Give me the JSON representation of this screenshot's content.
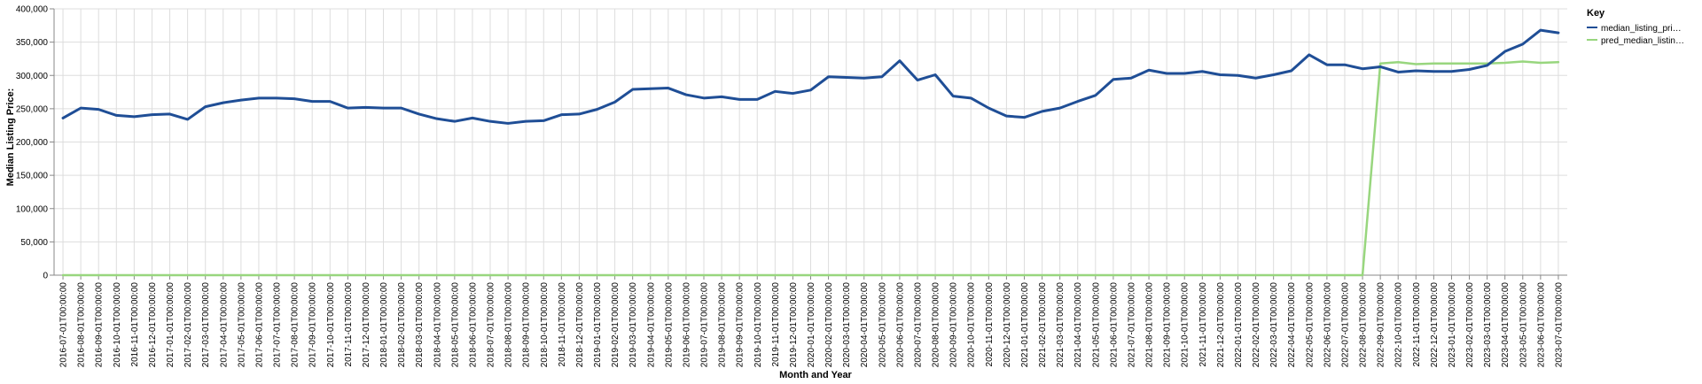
{
  "chart_data": {
    "type": "line",
    "xlabel": "Month and Year",
    "ylabel": "Median Listing Price:",
    "ylim": [
      0,
      400000
    ],
    "y_ticks": [
      "0",
      "50,000",
      "100,000",
      "150,000",
      "200,000",
      "250,000",
      "300,000",
      "350,000",
      "400,000"
    ],
    "grid": true,
    "legend": {
      "title": "Key",
      "placement": "top-right",
      "entries": [
        "median_listing_pri…",
        "pred_median_listin…"
      ]
    },
    "x": [
      "2016-07-01T00:00:00",
      "2016-08-01T00:00:00",
      "2016-09-01T00:00:00",
      "2016-10-01T00:00:00",
      "2016-11-01T00:00:00",
      "2016-12-01T00:00:00",
      "2017-01-01T00:00:00",
      "2017-02-01T00:00:00",
      "2017-03-01T00:00:00",
      "2017-04-01T00:00:00",
      "2017-05-01T00:00:00",
      "2017-06-01T00:00:00",
      "2017-07-01T00:00:00",
      "2017-08-01T00:00:00",
      "2017-09-01T00:00:00",
      "2017-10-01T00:00:00",
      "2017-11-01T00:00:00",
      "2017-12-01T00:00:00",
      "2018-01-01T00:00:00",
      "2018-02-01T00:00:00",
      "2018-03-01T00:00:00",
      "2018-04-01T00:00:00",
      "2018-05-01T00:00:00",
      "2018-06-01T00:00:00",
      "2018-07-01T00:00:00",
      "2018-08-01T00:00:00",
      "2018-09-01T00:00:00",
      "2018-10-01T00:00:00",
      "2018-11-01T00:00:00",
      "2018-12-01T00:00:00",
      "2019-01-01T00:00:00",
      "2019-02-01T00:00:00",
      "2019-03-01T00:00:00",
      "2019-04-01T00:00:00",
      "2019-05-01T00:00:00",
      "2019-06-01T00:00:00",
      "2019-07-01T00:00:00",
      "2019-08-01T00:00:00",
      "2019-09-01T00:00:00",
      "2019-10-01T00:00:00",
      "2019-11-01T00:00:00",
      "2019-12-01T00:00:00",
      "2020-01-01T00:00:00",
      "2020-02-01T00:00:00",
      "2020-03-01T00:00:00",
      "2020-04-01T00:00:00",
      "2020-05-01T00:00:00",
      "2020-06-01T00:00:00",
      "2020-07-01T00:00:00",
      "2020-08-01T00:00:00",
      "2020-09-01T00:00:00",
      "2020-10-01T00:00:00",
      "2020-11-01T00:00:00",
      "2020-12-01T00:00:00",
      "2021-01-01T00:00:00",
      "2021-02-01T00:00:00",
      "2021-03-01T00:00:00",
      "2021-04-01T00:00:00",
      "2021-05-01T00:00:00",
      "2021-06-01T00:00:00",
      "2021-07-01T00:00:00",
      "2021-08-01T00:00:00",
      "2021-09-01T00:00:00",
      "2021-10-01T00:00:00",
      "2021-11-01T00:00:00",
      "2021-12-01T00:00:00",
      "2022-01-01T00:00:00",
      "2022-02-01T00:00:00",
      "2022-03-01T00:00:00",
      "2022-04-01T00:00:00",
      "2022-05-01T00:00:00",
      "2022-06-01T00:00:00",
      "2022-07-01T00:00:00",
      "2022-08-01T00:00:00",
      "2022-09-01T00:00:00",
      "2022-10-01T00:00:00",
      "2022-11-01T00:00:00",
      "2022-12-01T00:00:00",
      "2023-01-01T00:00:00",
      "2023-02-01T00:00:00",
      "2023-03-01T00:00:00",
      "2023-04-01T00:00:00",
      "2023-05-01T00:00:00",
      "2023-06-01T00:00:00",
      "2023-07-01T00:00:00"
    ],
    "series": [
      {
        "name": "median_listing_pri…",
        "color": "#1f4e96",
        "values": [
          236000,
          251000,
          249000,
          240000,
          238000,
          241000,
          242000,
          234000,
          253000,
          259000,
          263000,
          266000,
          266000,
          265000,
          261000,
          261000,
          251000,
          252000,
          251000,
          251000,
          242000,
          235000,
          231000,
          236000,
          231000,
          228000,
          231000,
          232000,
          241000,
          242000,
          249000,
          260000,
          279000,
          280000,
          281000,
          271000,
          266000,
          268000,
          264000,
          264000,
          276000,
          273000,
          278000,
          298000,
          297000,
          296000,
          298000,
          322000,
          293000,
          301000,
          269000,
          266000,
          251000,
          239000,
          237000,
          246000,
          251000,
          261000,
          270000,
          294000,
          296000,
          308000,
          303000,
          303000,
          306000,
          301000,
          300000,
          296000,
          301000,
          307000,
          331000,
          316000,
          316000,
          310000,
          313000,
          305000,
          307000,
          306000,
          306000,
          309000,
          315000,
          336000,
          347000,
          368000,
          364000
        ]
      },
      {
        "name": "pred_median_listin…",
        "color": "#98d67e",
        "values": [
          0,
          0,
          0,
          0,
          0,
          0,
          0,
          0,
          0,
          0,
          0,
          0,
          0,
          0,
          0,
          0,
          0,
          0,
          0,
          0,
          0,
          0,
          0,
          0,
          0,
          0,
          0,
          0,
          0,
          0,
          0,
          0,
          0,
          0,
          0,
          0,
          0,
          0,
          0,
          0,
          0,
          0,
          0,
          0,
          0,
          0,
          0,
          0,
          0,
          0,
          0,
          0,
          0,
          0,
          0,
          0,
          0,
          0,
          0,
          0,
          0,
          0,
          0,
          0,
          0,
          0,
          0,
          0,
          0,
          0,
          0,
          0,
          0,
          0,
          318000,
          320000,
          317000,
          318000,
          318000,
          318000,
          318000,
          319000,
          321000,
          319000,
          320000
        ]
      }
    ]
  }
}
